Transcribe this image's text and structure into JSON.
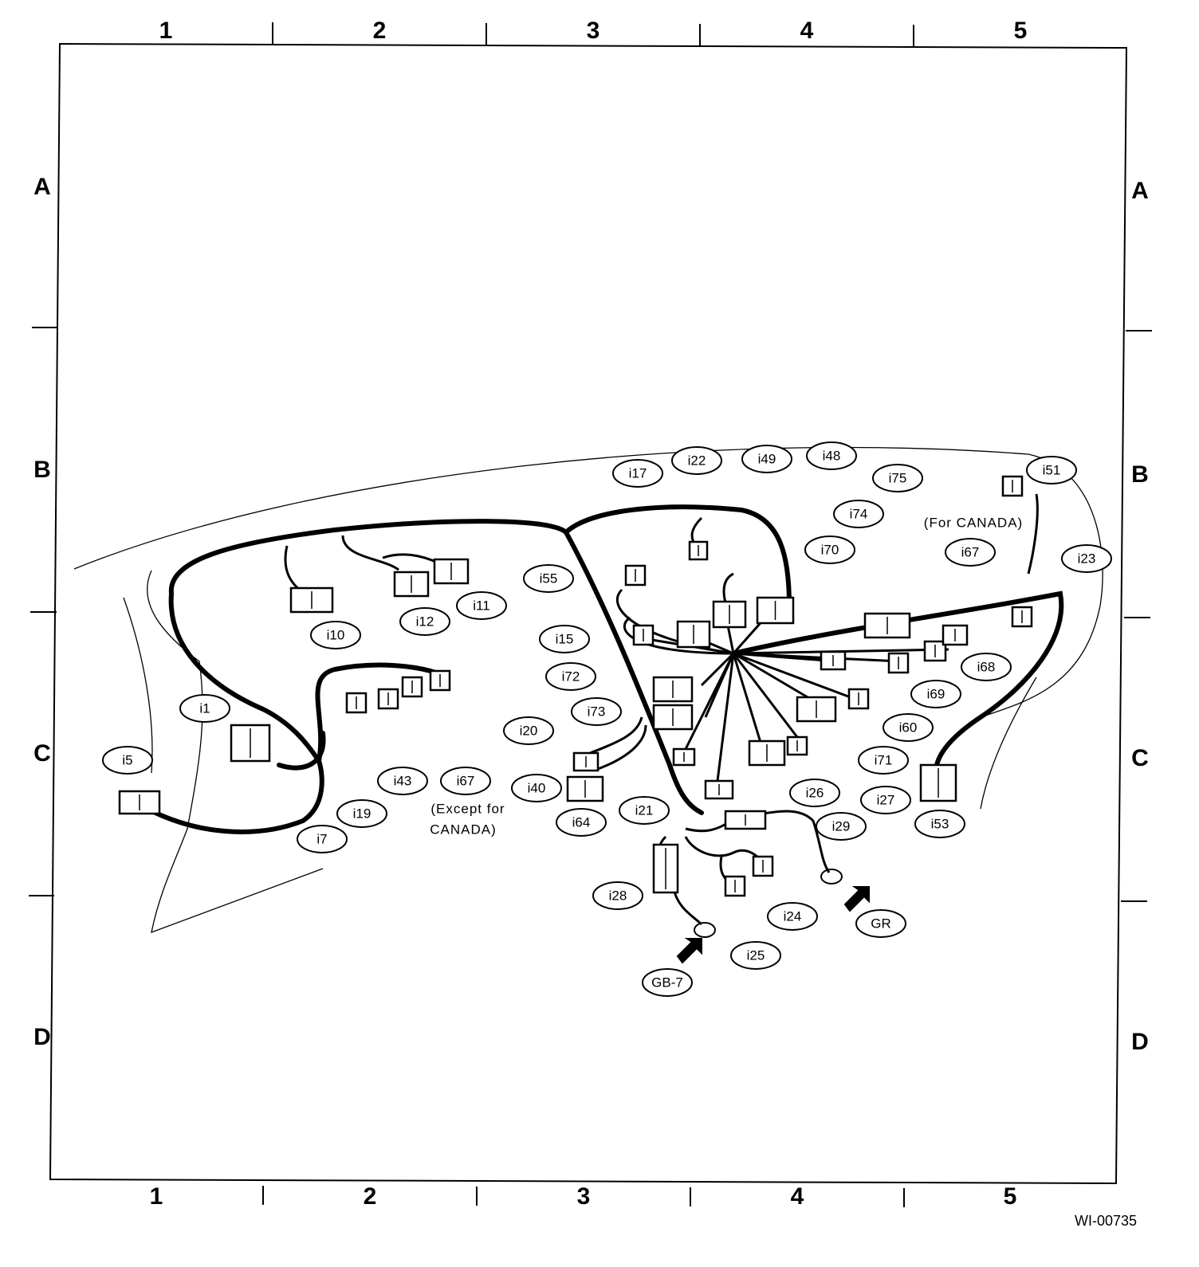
{
  "grid": {
    "columns": [
      "1",
      "2",
      "3",
      "4",
      "5"
    ],
    "rows": [
      "A",
      "B",
      "C",
      "D"
    ]
  },
  "connectors": [
    "i17",
    "i22",
    "i49",
    "i48",
    "i75",
    "i51",
    "i74",
    "i70",
    "i67",
    "i23",
    "i55",
    "i15",
    "i72",
    "i73",
    "i20",
    "i40",
    "i64",
    "i21",
    "i10",
    "i12",
    "i11",
    "i1",
    "i5",
    "i43",
    "i67",
    "i19",
    "i7",
    "i69",
    "i68",
    "i60",
    "i71",
    "i26",
    "i27",
    "i53",
    "i29",
    "i28",
    "i24",
    "i25"
  ],
  "grounds": [
    "GB-7",
    "GR"
  ],
  "notes": {
    "for_canada": "(For CANADA)",
    "except_canada": [
      "(Except for",
      "CANADA)"
    ]
  },
  "figure_id": "WI-00735"
}
